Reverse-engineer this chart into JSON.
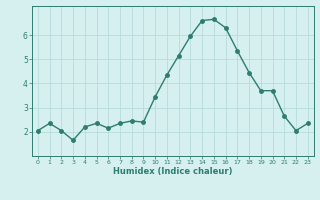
{
  "x": [
    0,
    1,
    2,
    3,
    4,
    5,
    6,
    7,
    8,
    9,
    10,
    11,
    12,
    13,
    14,
    15,
    16,
    17,
    18,
    19,
    20,
    21,
    22,
    23
  ],
  "y": [
    2.05,
    2.35,
    2.05,
    1.65,
    2.2,
    2.35,
    2.15,
    2.35,
    2.45,
    2.4,
    3.45,
    4.35,
    5.15,
    5.95,
    6.6,
    6.65,
    6.3,
    5.35,
    4.45,
    3.7,
    3.7,
    2.65,
    2.05,
    2.35
  ],
  "line_color": "#2e7d6e",
  "marker": "o",
  "markersize": 2.5,
  "linewidth": 1.0,
  "xlabel": "Humidex (Indice chaleur)",
  "bg_color": "#d6f0ef",
  "grid_color": "#b0d8d4",
  "axis_color": "#2e7d6e",
  "tick_label_color": "#2e7d6e",
  "xlabel_color": "#2e7d6e",
  "ylim": [
    1.0,
    7.2
  ],
  "xlim": [
    -0.5,
    23.5
  ],
  "yticks": [
    2,
    3,
    4,
    5,
    6
  ],
  "xticks": [
    0,
    1,
    2,
    3,
    4,
    5,
    6,
    7,
    8,
    9,
    10,
    11,
    12,
    13,
    14,
    15,
    16,
    17,
    18,
    19,
    20,
    21,
    22,
    23
  ]
}
